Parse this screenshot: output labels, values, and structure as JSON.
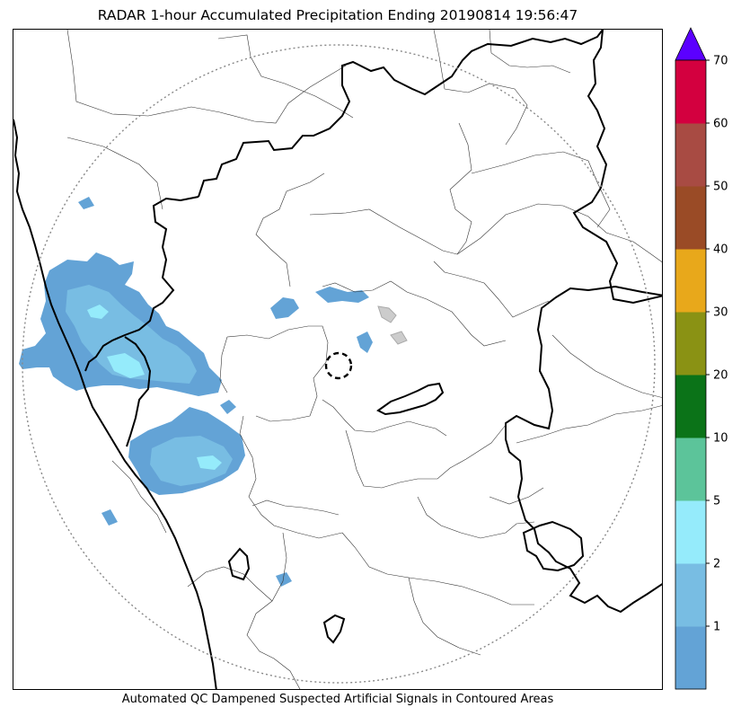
{
  "title": "RADAR 1-hour Accumulated Precipitation Ending 20190814 19:56:47",
  "caption": "Automated QC Dampened Suspected Artificial Signals in Contoured Areas",
  "colorbar": {
    "extend_color": "#5b00ff",
    "bins": [
      {
        "from": 0,
        "to": 1,
        "color": "#63a3d6"
      },
      {
        "from": 1,
        "to": 2,
        "color": "#78bde3"
      },
      {
        "from": 2,
        "to": 5,
        "color": "#95ebfb"
      },
      {
        "from": 5,
        "to": 10,
        "color": "#5cc49a"
      },
      {
        "from": 10,
        "to": 20,
        "color": "#0b7318"
      },
      {
        "from": 20,
        "to": 30,
        "color": "#8a9214"
      },
      {
        "from": 30,
        "to": 40,
        "color": "#e8a81b"
      },
      {
        "from": 40,
        "to": 50,
        "color": "#9a4b26"
      },
      {
        "from": 50,
        "to": 60,
        "color": "#a84b43"
      },
      {
        "from": 60,
        "to": 70,
        "color": "#d3003f"
      }
    ],
    "tick_labels": [
      "1",
      "2",
      "5",
      "10",
      "20",
      "30",
      "40",
      "50",
      "60",
      "70"
    ]
  },
  "map": {
    "range_ring": "dotted",
    "radar_site_marker": "dashed-circle",
    "colors": {
      "state_boundary": "#000000",
      "district_boundary": "#333333",
      "range_ring": "#888888",
      "qc_contour": "#aaaaaa"
    }
  }
}
